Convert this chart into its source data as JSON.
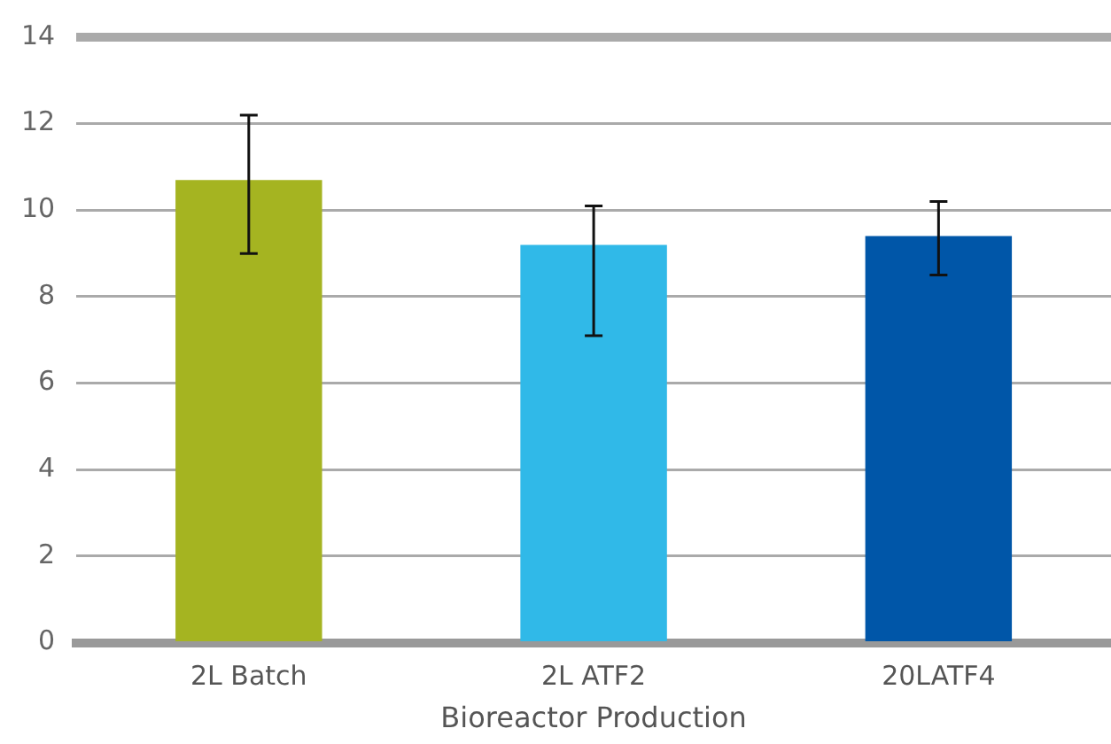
{
  "chart_data": {
    "type": "bar",
    "xlabel": "Bioreactor Production",
    "categories": [
      "2L Batch",
      "2L ATF2",
      "20LATF4"
    ],
    "values": [
      10.7,
      9.2,
      9.4
    ],
    "colors": [
      "#a5b421",
      "#30b9e8",
      "#0056a8"
    ],
    "errors": [
      [
        9.0,
        12.2
      ],
      [
        7.1,
        10.1
      ],
      [
        8.5,
        10.2
      ]
    ],
    "ylim": [
      0,
      14
    ],
    "yticks": [
      0,
      2,
      4,
      6,
      8,
      10,
      12,
      14
    ],
    "grid": "y",
    "legend": false
  }
}
